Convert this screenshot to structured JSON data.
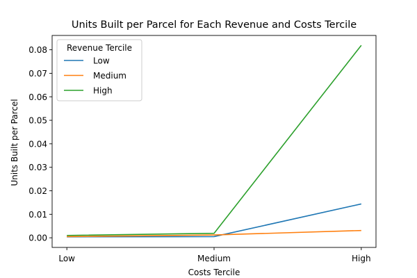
{
  "chart_data": {
    "type": "line",
    "title": "Units Built per Parcel for Each Revenue and Costs Tercile",
    "xlabel": "Costs Tercile",
    "ylabel": "Units Built per Parcel",
    "categories": [
      "Low",
      "Medium",
      "High"
    ],
    "ylim": [
      -0.0041,
      0.0861
    ],
    "yticks": [
      "0.00",
      "0.01",
      "0.02",
      "0.03",
      "0.04",
      "0.05",
      "0.06",
      "0.07",
      "0.08"
    ],
    "grid": false,
    "legend": {
      "title": "Revenue Tercile",
      "placement": "top-left"
    },
    "series": [
      {
        "name": "Low",
        "color": "#1f77b4",
        "values": [
          0.0004,
          0.0005,
          0.0144
        ]
      },
      {
        "name": "Medium",
        "color": "#ff7f0e",
        "values": [
          0.0005,
          0.0012,
          0.0031
        ]
      },
      {
        "name": "High",
        "color": "#2ca02c",
        "values": [
          0.001,
          0.0019,
          0.0819
        ]
      }
    ]
  }
}
